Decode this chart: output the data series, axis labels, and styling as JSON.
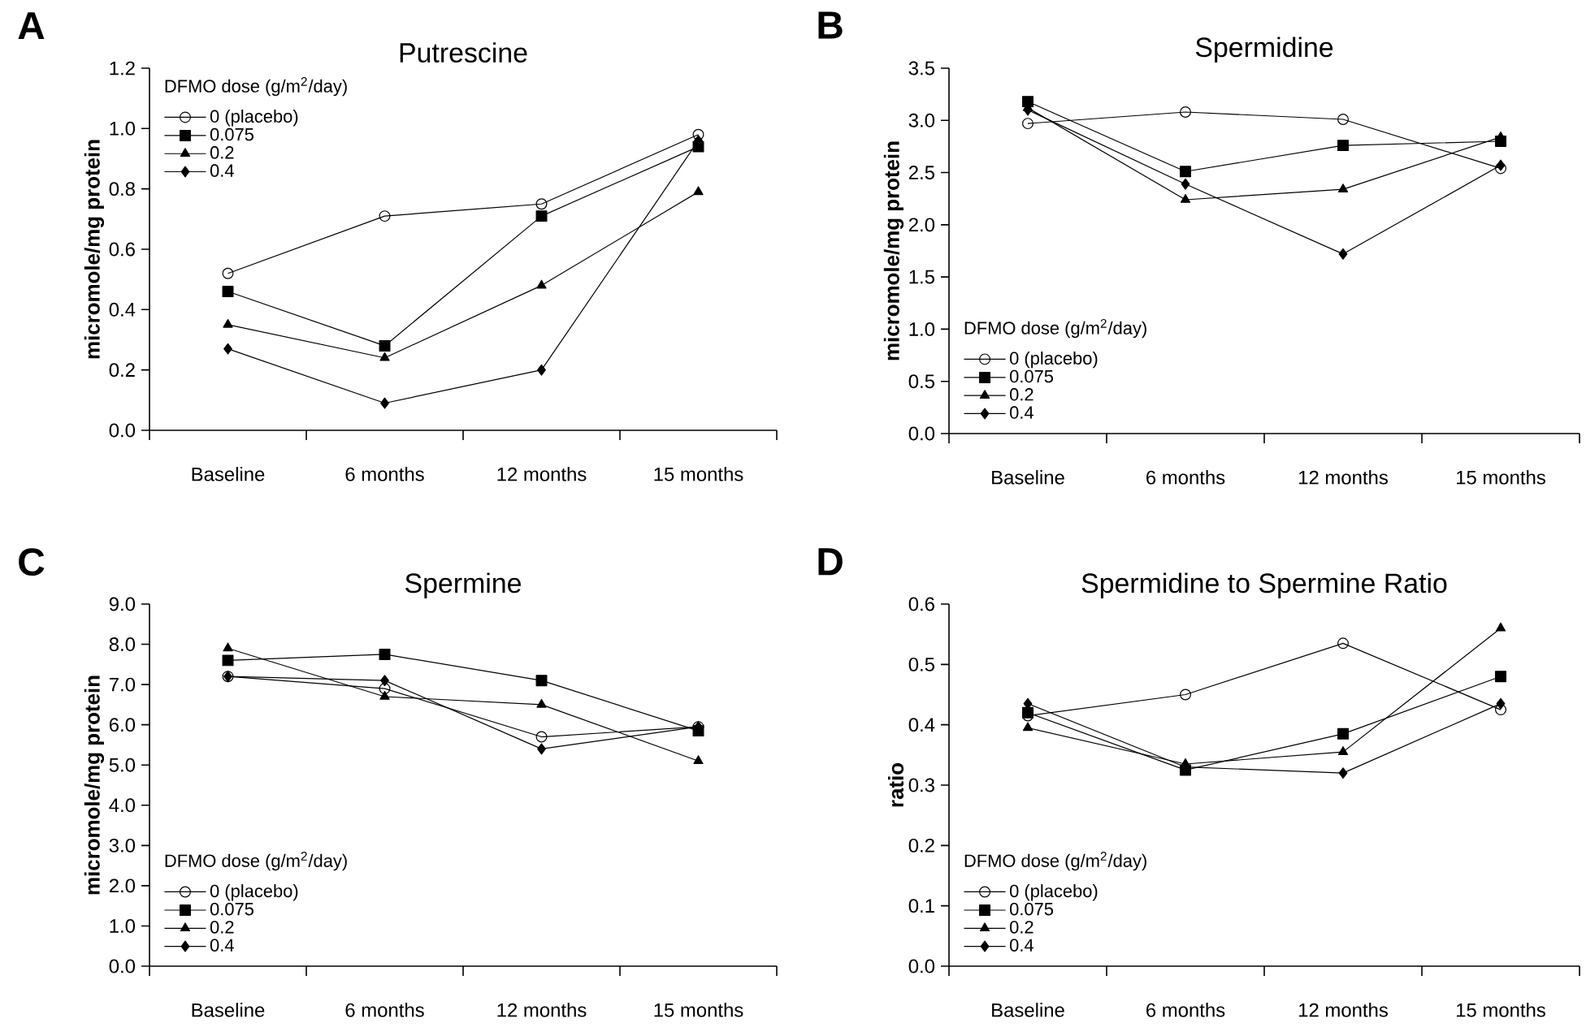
{
  "chart_data": [
    {
      "type": "line",
      "title": "Putrescine",
      "ylabel": "micromole/mg protein",
      "legend_title": "DFMO dose (g/m$^{2}$/day)",
      "annotations": [
        "A"
      ],
      "legend": "top left",
      "line_style": "solid",
      "categories": [
        "Baseline",
        "6 months",
        "12 months",
        "15 months"
      ],
      "ylim": [
        0,
        1.2
      ],
      "yticks": [
        {
          "value": 0,
          "label": "0.0"
        },
        {
          "value": 0.2,
          "label": "0.2"
        },
        {
          "value": 0.4,
          "label": "0.4"
        },
        {
          "value": 0.6,
          "label": "0.6"
        },
        {
          "value": 0.8,
          "label": "0.8"
        },
        {
          "value": 1.0,
          "label": "1.0"
        },
        {
          "value": 1.2,
          "label": "1.2"
        }
      ],
      "series": [
        {
          "name": "0 (placebo)",
          "color": "#000000",
          "marker": "circle",
          "values": [
            0.52,
            0.71,
            0.75,
            0.98
          ]
        },
        {
          "name": "0.075",
          "color": "#000000",
          "marker": "square",
          "values": [
            0.46,
            0.28,
            0.71,
            0.94
          ]
        },
        {
          "name": "0.2",
          "color": "#000000",
          "marker": "triangle",
          "values": [
            0.35,
            0.24,
            0.48,
            0.79
          ]
        },
        {
          "name": "0.4",
          "color": "#000000",
          "marker": "diamond",
          "values": [
            0.27,
            0.09,
            0.2,
            0.96
          ]
        }
      ]
    },
    {
      "type": "line",
      "title": "Spermidine",
      "ylabel": "micromole/mg protein",
      "legend_title": "DFMO dose (g/m$^{2}$/day)",
      "annotations": [
        "B"
      ],
      "legend": "bottom left",
      "line_style": "solid",
      "categories": [
        "Baseline",
        "6 months",
        "12 months",
        "15 months"
      ],
      "ylim": [
        0,
        3.5
      ],
      "yticks": [
        {
          "value": 0,
          "label": "0.0"
        },
        {
          "value": 0.5,
          "label": "0.5"
        },
        {
          "value": 1.0,
          "label": "1.0"
        },
        {
          "value": 1.5,
          "label": "1.5"
        },
        {
          "value": 2.0,
          "label": "2.0"
        },
        {
          "value": 2.5,
          "label": "2.5"
        },
        {
          "value": 3.0,
          "label": "3.0"
        },
        {
          "value": 3.5,
          "label": "3.5"
        }
      ],
      "series": [
        {
          "name": "0 (placebo)",
          "color": "#000000",
          "marker": "circle",
          "values": [
            2.97,
            3.08,
            3.01,
            2.54
          ]
        },
        {
          "name": "0.075",
          "color": "#000000",
          "marker": "square",
          "values": [
            3.18,
            2.51,
            2.76,
            2.8
          ]
        },
        {
          "name": "0.2",
          "color": "#000000",
          "marker": "triangle",
          "values": [
            3.12,
            2.24,
            2.34,
            2.84
          ]
        },
        {
          "name": "0.4",
          "color": "#000000",
          "marker": "diamond",
          "values": [
            3.1,
            2.39,
            1.72,
            2.57
          ]
        }
      ]
    },
    {
      "type": "line",
      "title": "Spermine",
      "ylabel": "micromole/mg protein",
      "legend_title": "DFMO dose (g/m$^{2}$/day)",
      "annotations": [
        "C"
      ],
      "legend": "bottom left",
      "line_style": "solid",
      "categories": [
        "Baseline",
        "6 months",
        "12 months",
        "15 months"
      ],
      "ylim": [
        0,
        9
      ],
      "yticks": [
        {
          "value": 0,
          "label": "0.0"
        },
        {
          "value": 1,
          "label": "1.0"
        },
        {
          "value": 2,
          "label": "2.0"
        },
        {
          "value": 3,
          "label": "3.0"
        },
        {
          "value": 4,
          "label": "4.0"
        },
        {
          "value": 5,
          "label": "5.0"
        },
        {
          "value": 6,
          "label": "6.0"
        },
        {
          "value": 7,
          "label": "7.0"
        },
        {
          "value": 8,
          "label": "8.0"
        },
        {
          "value": 9,
          "label": "9.0"
        }
      ],
      "series": [
        {
          "name": "0 (placebo)",
          "color": "#000000",
          "marker": "circle",
          "values": [
            7.2,
            6.9,
            5.7,
            5.95
          ]
        },
        {
          "name": "0.075",
          "color": "#000000",
          "marker": "square",
          "values": [
            7.6,
            7.75,
            7.1,
            5.85
          ]
        },
        {
          "name": "0.2",
          "color": "#000000",
          "marker": "triangle",
          "values": [
            7.9,
            6.7,
            6.5,
            5.1
          ]
        },
        {
          "name": "0.4",
          "color": "#000000",
          "marker": "diamond",
          "values": [
            7.2,
            7.1,
            5.4,
            5.95
          ]
        }
      ]
    },
    {
      "type": "line",
      "title": "Spermidine to Spermine Ratio",
      "ylabel": "ratio",
      "legend_title": "DFMO dose (g/m$^{2}$/day)",
      "annotations": [
        "D"
      ],
      "legend": "bottom left",
      "line_style": "solid",
      "categories": [
        "Baseline",
        "6 months",
        "12 months",
        "15 months"
      ],
      "ylim": [
        0,
        0.6
      ],
      "yticks": [
        {
          "value": 0,
          "label": "0.0"
        },
        {
          "value": 0.1,
          "label": "0.1"
        },
        {
          "value": 0.2,
          "label": "0.2"
        },
        {
          "value": 0.3,
          "label": "0.3"
        },
        {
          "value": 0.4,
          "label": "0.4"
        },
        {
          "value": 0.5,
          "label": "0.5"
        },
        {
          "value": 0.6,
          "label": "0.6"
        }
      ],
      "series": [
        {
          "name": "0 (placebo)",
          "color": "#000000",
          "marker": "circle",
          "values": [
            0.415,
            0.45,
            0.535,
            0.425
          ]
        },
        {
          "name": "0.075",
          "color": "#000000",
          "marker": "square",
          "values": [
            0.42,
            0.325,
            0.385,
            0.48
          ]
        },
        {
          "name": "0.2",
          "color": "#000000",
          "marker": "triangle",
          "values": [
            0.395,
            0.335,
            0.355,
            0.56
          ]
        },
        {
          "name": "0.4",
          "color": "#000000",
          "marker": "diamond",
          "values": [
            0.435,
            0.33,
            0.32,
            0.435
          ]
        }
      ]
    }
  ]
}
